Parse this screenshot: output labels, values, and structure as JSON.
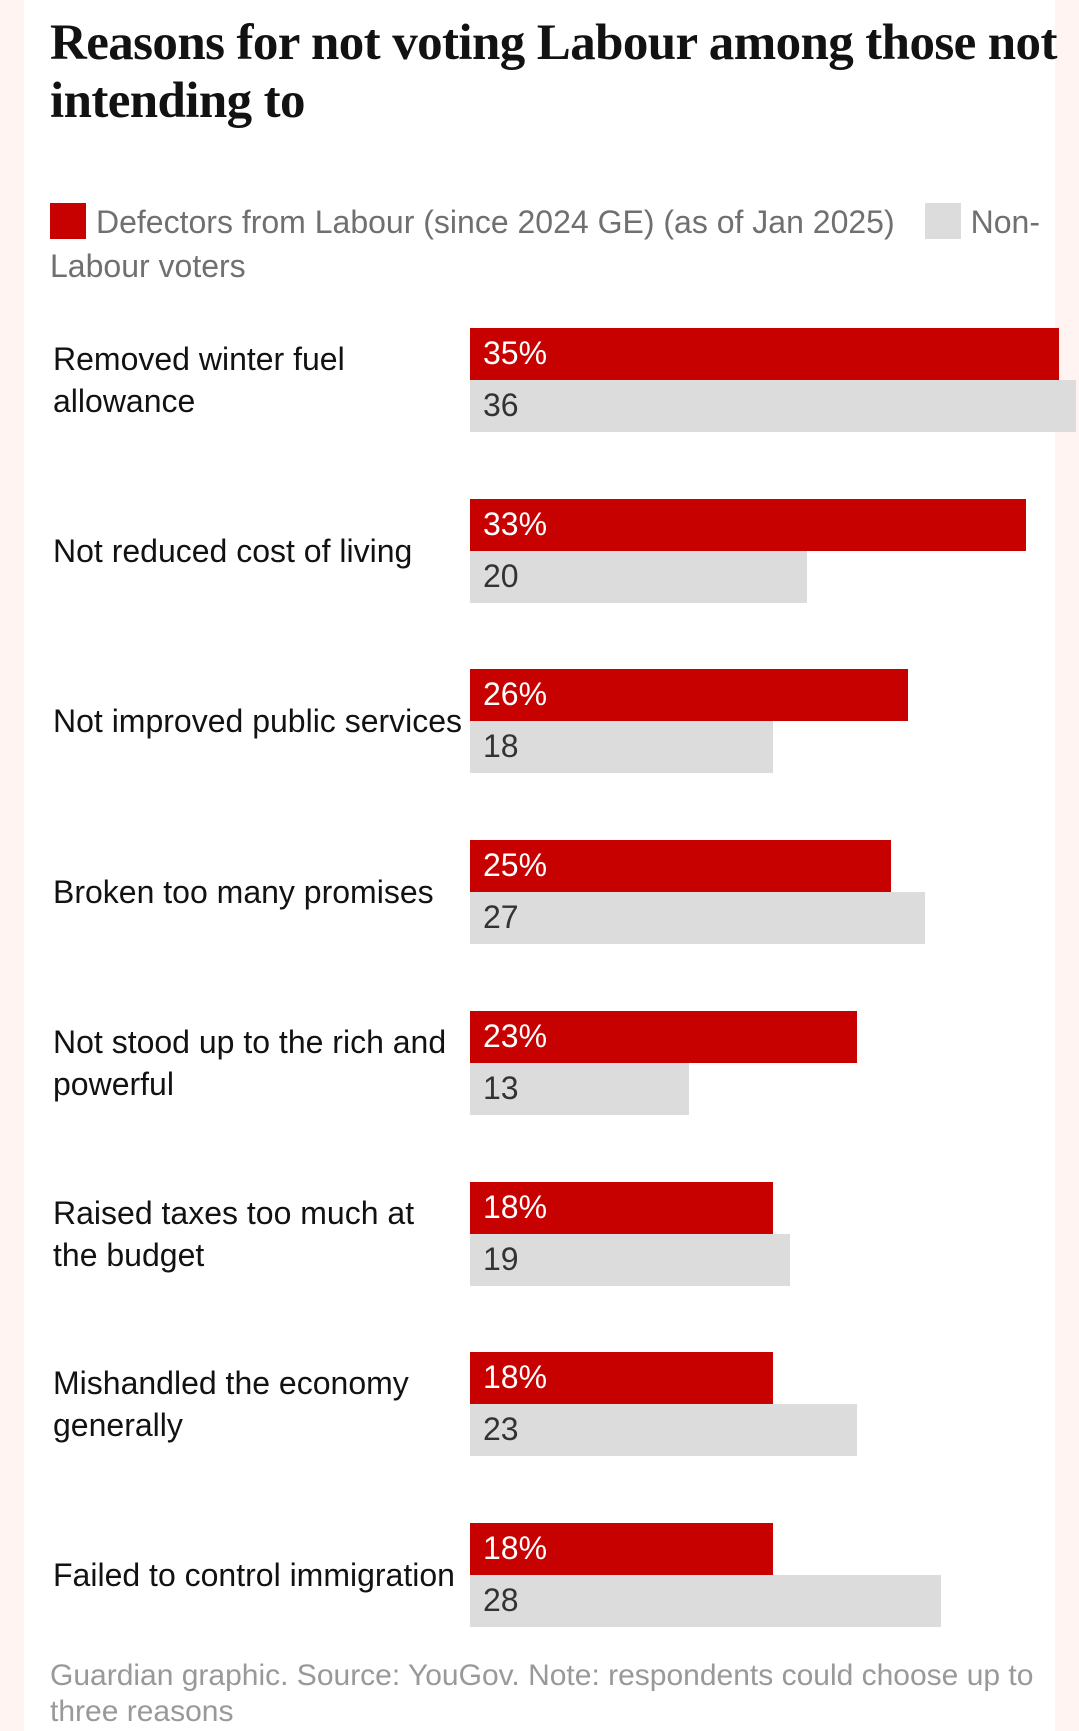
{
  "chart_data": {
    "type": "bar",
    "orientation": "horizontal",
    "title": "Reasons for not voting Labour among those not intending to",
    "categories": [
      "Removed winter fuel allowance",
      "Not reduced cost of living",
      "Not improved public services",
      "Broken too many promises",
      "Not stood up to the rich and powerful",
      "Raised taxes too much at the budget",
      "Mishandled the economy generally",
      "Failed to control immigration"
    ],
    "series": [
      {
        "name": "Defectors from Labour (since 2024 GE) (as of Jan 2025)",
        "color": "#c70000",
        "values": [
          35,
          33,
          26,
          25,
          23,
          18,
          18,
          18
        ],
        "value_labels": [
          "35%",
          "33%",
          "26%",
          "25%",
          "23%",
          "18%",
          "18%",
          "18%"
        ]
      },
      {
        "name": "Non-Labour voters",
        "color": "#dcdcdc",
        "values": [
          36,
          20,
          18,
          27,
          13,
          19,
          23,
          28
        ]
      }
    ],
    "footer": "Guardian graphic. Source: YouGov. Note: respondents could choose up to three reasons"
  }
}
